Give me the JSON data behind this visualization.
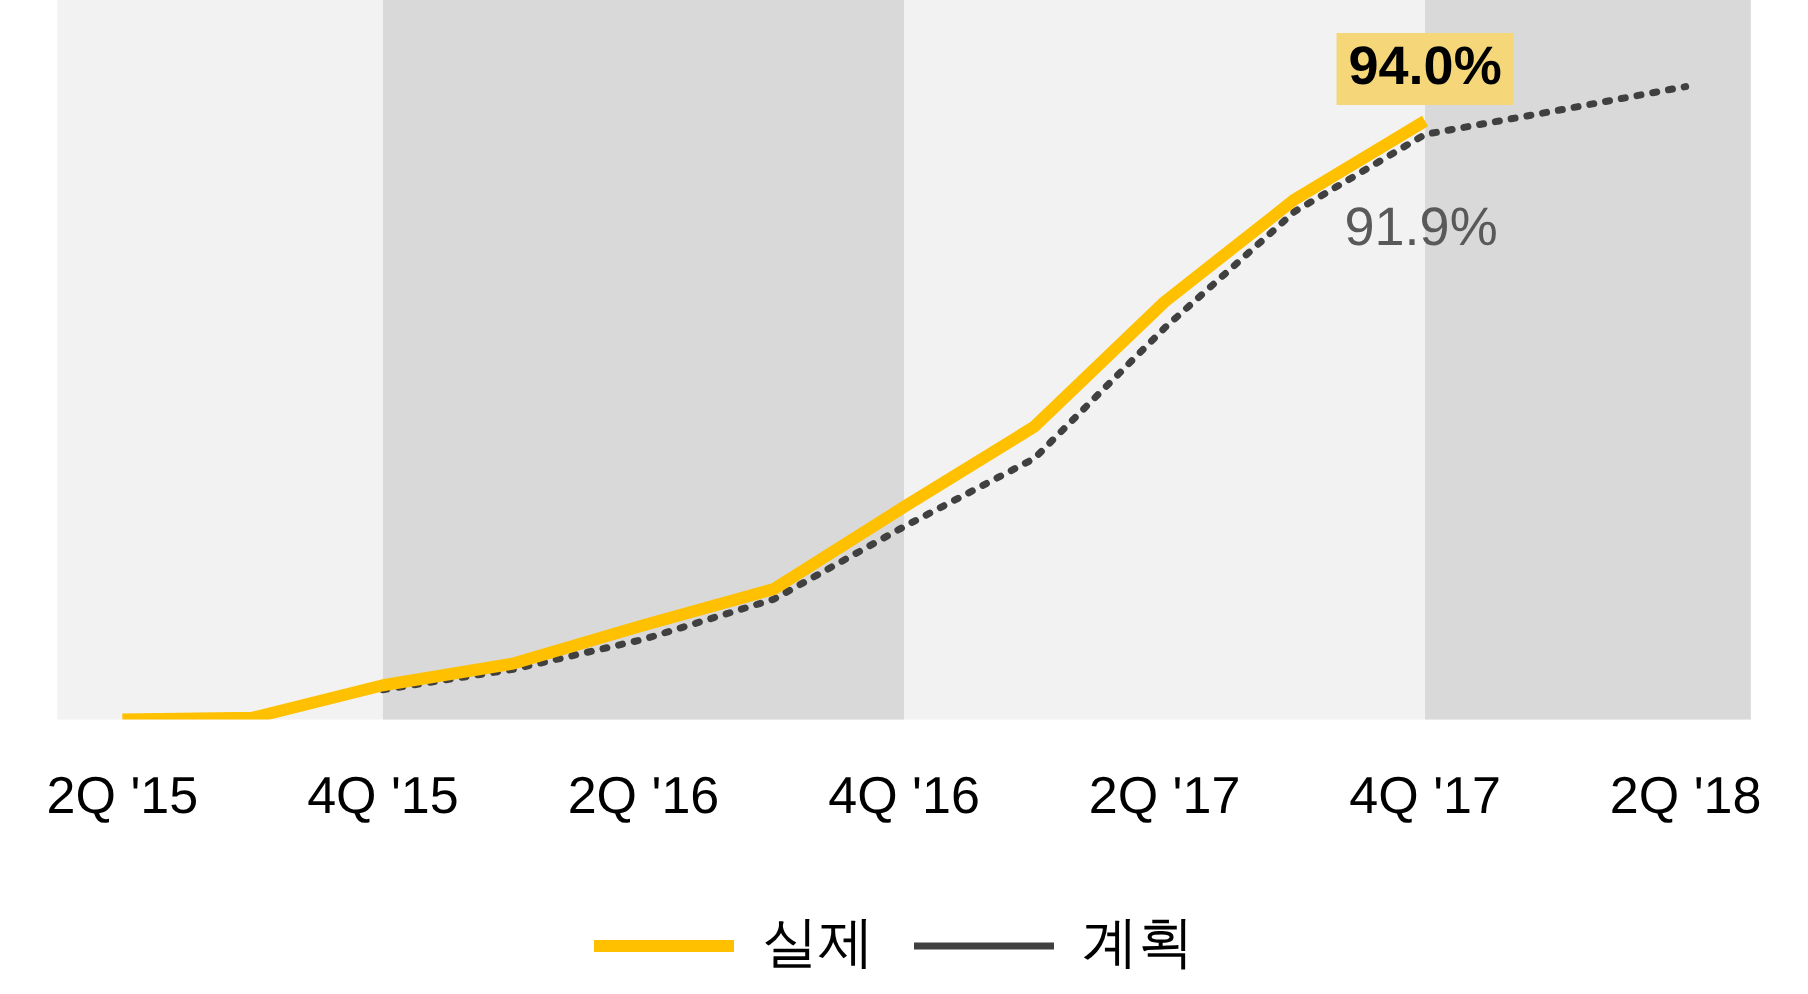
{
  "chart_data": {
    "type": "line",
    "categories": [
      "2Q '15",
      null,
      "4Q '15",
      null,
      "2Q '16",
      null,
      "4Q '16",
      null,
      "2Q '17",
      null,
      "4Q '17",
      null,
      "2Q '18"
    ],
    "series": [
      {
        "name": "계획",
        "color": "#404040",
        "line_style": "dotted",
        "values": [
          null,
          null,
          4.7,
          7.9,
          12.6,
          18.9,
          30.3,
          41,
          61.5,
          79.8,
          91.9,
          95.6,
          99.4
        ],
        "value_labels": [
          null,
          null,
          null,
          null,
          null,
          null,
          null,
          null,
          null,
          null,
          "91.9%",
          null,
          null
        ]
      },
      {
        "name": "실제",
        "color": "#ffc000",
        "line_style": "solid",
        "values": [
          0,
          0.3,
          5.4,
          8.8,
          14.8,
          20.5,
          33.4,
          46,
          65.6,
          81.7,
          94.0,
          null,
          null
        ],
        "value_labels": [
          null,
          null,
          null,
          null,
          null,
          null,
          null,
          null,
          null,
          null,
          "94.0%",
          null,
          null
        ]
      }
    ],
    "ylim": [
      0,
      113
    ],
    "tick_labels": "x",
    "grid": false,
    "legend": "bottom",
    "marker": "none",
    "bands": [
      {
        "axis": "x",
        "from": "4Q '15",
        "to": "4Q '16",
        "color": "#d9d9d9"
      },
      {
        "axis": "x",
        "from": "4Q '17",
        "to": "2Q '18",
        "color": "#d9d9d9"
      }
    ]
  }
}
